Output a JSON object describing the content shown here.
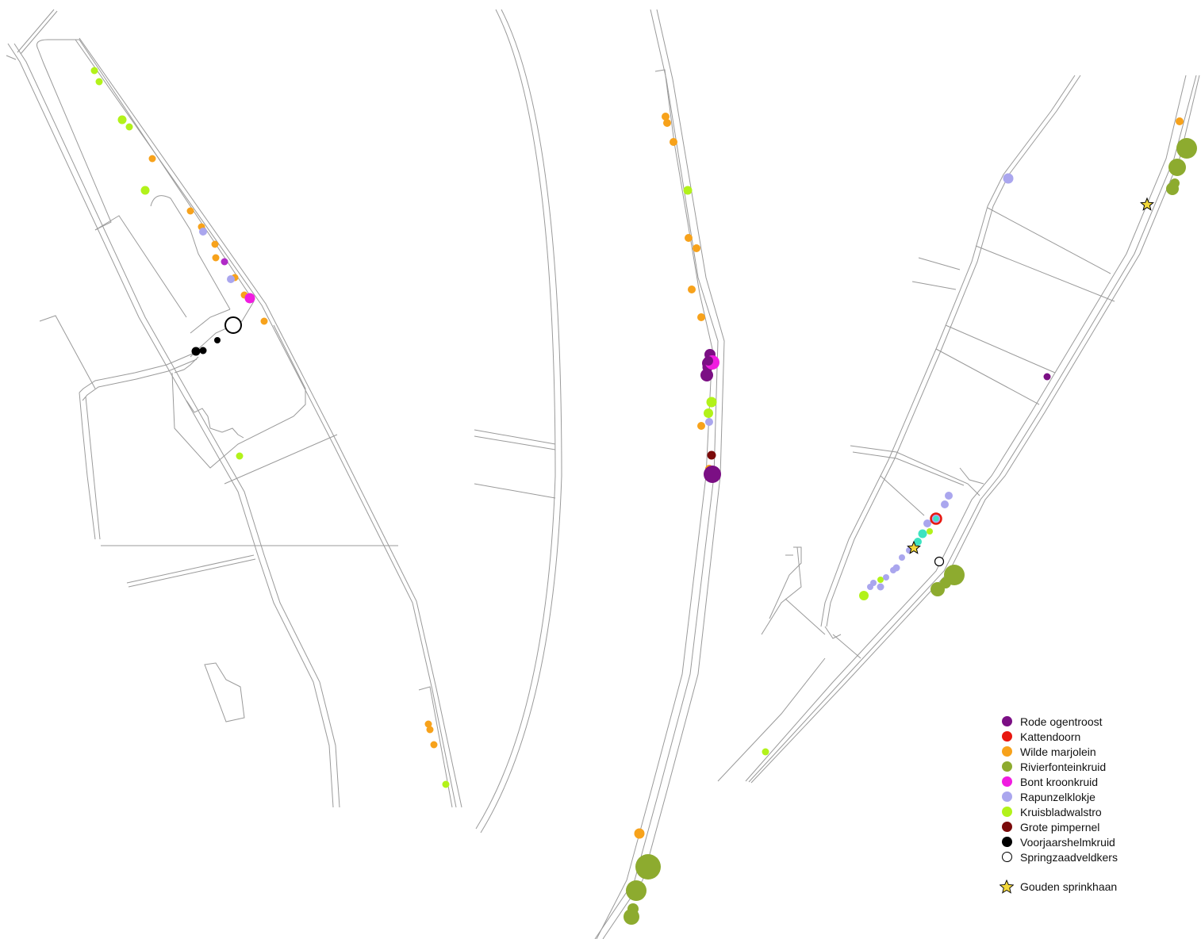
{
  "legend": {
    "items": [
      {
        "label": "Rode ogentroost",
        "color": "#7b0f84"
      },
      {
        "label": "Kattendoorn",
        "color": "#e8170f"
      },
      {
        "label": "Wilde marjolein",
        "color": "#f7a21b"
      },
      {
        "label": "Rivierfonteinkruid",
        "color": "#8dab2f"
      },
      {
        "label": "Bont kroonkruid",
        "color": "#f01ce0"
      },
      {
        "label": "Rapunzelklokje",
        "color": "#aaa6ee"
      },
      {
        "label": "Kruisbladwalstro",
        "color": "#b2f21a"
      },
      {
        "label": "Grote pimpernel",
        "color": "#7a0a0a"
      },
      {
        "label": "Voorjaarshelmkruid",
        "color": "#000000"
      },
      {
        "label": "Springzaadveldkers",
        "color": "#ffffff",
        "outline": "#000000"
      }
    ],
    "star": {
      "label": "Gouden sprinkhaan",
      "color": "#f3d83a",
      "icon": "star-icon"
    }
  }
}
